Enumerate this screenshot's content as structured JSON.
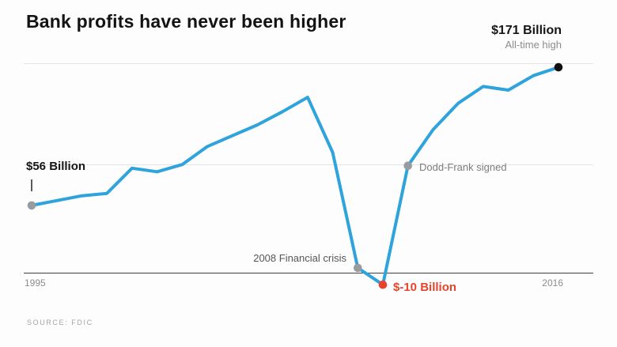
{
  "page": {
    "title": "Bank profits have never been higher",
    "source": "SOURCE: FDIC"
  },
  "chart_data": {
    "type": "line",
    "title": "Bank profits have never been higher",
    "unit": "USD billions",
    "line_color": "#2ea3dc",
    "grid": "horizontal",
    "legend": "none",
    "x": [
      1995,
      1996,
      1997,
      1998,
      1999,
      2000,
      2001,
      2002,
      2003,
      2004,
      2005,
      2006,
      2007,
      2008,
      2009,
      2010,
      2011,
      2012,
      2013,
      2014,
      2015,
      2016
    ],
    "values": [
      56,
      60,
      64,
      66,
      87,
      84,
      90,
      105,
      114,
      123,
      134,
      146,
      100,
      4,
      -10,
      89,
      119,
      141,
      155,
      152,
      164,
      171
    ],
    "ylim": [
      -25,
      195
    ],
    "x_axis": {
      "start_label": "1995",
      "end_label": "2016"
    },
    "annotations": [
      {
        "id": "start",
        "year": 1995,
        "value": 56,
        "label": "$56 Billion",
        "dot_color": "#979ca1"
      },
      {
        "id": "crisis",
        "year": 2008,
        "value": 4,
        "label": "2008 Financial crisis",
        "dot_color": "#979ca1"
      },
      {
        "id": "trough",
        "year": 2009,
        "value": -10,
        "label": "$-10 Billion",
        "dot_color": "#e8432c"
      },
      {
        "id": "dodd-frank",
        "year": 2010,
        "value": 89,
        "label": "Dodd-Frank signed",
        "dot_color": "#979ca1"
      },
      {
        "id": "peak",
        "year": 2016,
        "value": 171,
        "label": "$171 Billion",
        "sublabel": "All-time high",
        "dot_color": "#111111"
      }
    ]
  }
}
